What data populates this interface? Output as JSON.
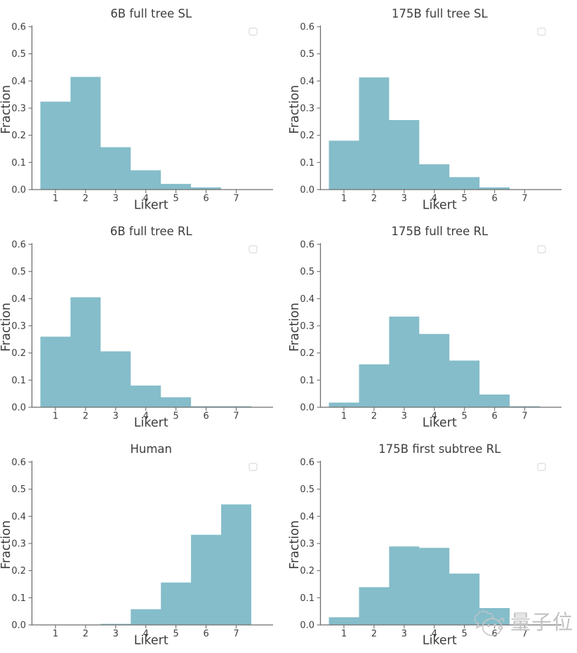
{
  "figure": {
    "background": "#ffffff",
    "rows": 3,
    "cols": 2
  },
  "style": {
    "bar_color": "#85bdca",
    "axis_color": "#6e6e6e",
    "text_color": "#3d3d3d",
    "legend_border_color": "#dcdcdc",
    "watermark_color": "#c2c2c2"
  },
  "watermark": {
    "text": "量子位",
    "logo": "qbitai-logo"
  },
  "chart_data": [
    {
      "type": "bar",
      "title": "6B full tree SL",
      "xlabel": "Likert",
      "ylabel": "Fraction",
      "categories": [
        1,
        2,
        3,
        4,
        5,
        6,
        7
      ],
      "values": [
        0.324,
        0.415,
        0.156,
        0.071,
        0.021,
        0.008,
        0.0
      ],
      "bar_width": 1.0,
      "xticks": [
        "1",
        "2",
        "3",
        "4",
        "5",
        "6",
        "7"
      ],
      "ytick_labels": [
        "0.0",
        "0.1",
        "0.2",
        "0.3",
        "0.4",
        "0.5",
        "0.6"
      ],
      "yticks": [
        0.0,
        0.1,
        0.2,
        0.3,
        0.4,
        0.5,
        0.6
      ],
      "ylim": [
        0,
        0.6
      ],
      "xlim": [
        0.22,
        8.13
      ],
      "grid": false,
      "legend": "empty-box-top-right"
    },
    {
      "type": "bar",
      "title": "175B full tree SL",
      "xlabel": "Likert",
      "ylabel": "Fraction",
      "categories": [
        1,
        2,
        3,
        4,
        5,
        6,
        7
      ],
      "values": [
        0.18,
        0.413,
        0.256,
        0.093,
        0.046,
        0.008,
        0.0
      ],
      "bar_width": 1.0,
      "xticks": [
        "1",
        "2",
        "3",
        "4",
        "5",
        "6",
        "7"
      ],
      "ytick_labels": [
        "0.0",
        "0.1",
        "0.2",
        "0.3",
        "0.4",
        "0.5",
        "0.6"
      ],
      "yticks": [
        0.0,
        0.1,
        0.2,
        0.3,
        0.4,
        0.5,
        0.6
      ],
      "ylim": [
        0,
        0.6
      ],
      "xlim": [
        0.22,
        8.13
      ],
      "grid": false,
      "legend": "empty-box-top-right"
    },
    {
      "type": "bar",
      "title": "6B full tree RL",
      "xlabel": "Likert",
      "ylabel": "Fraction",
      "categories": [
        1,
        2,
        3,
        4,
        5,
        6,
        7
      ],
      "values": [
        0.26,
        0.405,
        0.206,
        0.08,
        0.037,
        0.004,
        0.004
      ],
      "bar_width": 1.0,
      "xticks": [
        "1",
        "2",
        "3",
        "4",
        "5",
        "6",
        "7"
      ],
      "ytick_labels": [
        "0.0",
        "0.1",
        "0.2",
        "0.3",
        "0.4",
        "0.5",
        "0.6"
      ],
      "yticks": [
        0.0,
        0.1,
        0.2,
        0.3,
        0.4,
        0.5,
        0.6
      ],
      "ylim": [
        0,
        0.6
      ],
      "xlim": [
        0.22,
        8.13
      ],
      "grid": false,
      "legend": "empty-box-top-right"
    },
    {
      "type": "bar",
      "title": "175B full tree RL",
      "xlabel": "Likert",
      "ylabel": "Fraction",
      "categories": [
        1,
        2,
        3,
        4,
        5,
        6,
        7
      ],
      "values": [
        0.017,
        0.158,
        0.334,
        0.27,
        0.172,
        0.047,
        0.004
      ],
      "bar_width": 1.0,
      "xticks": [
        "1",
        "2",
        "3",
        "4",
        "5",
        "6",
        "7"
      ],
      "ytick_labels": [
        "0.0",
        "0.1",
        "0.2",
        "0.3",
        "0.4",
        "0.5",
        "0.6"
      ],
      "yticks": [
        0.0,
        0.1,
        0.2,
        0.3,
        0.4,
        0.5,
        0.6
      ],
      "ylim": [
        0,
        0.6
      ],
      "xlim": [
        0.22,
        8.13
      ],
      "grid": false,
      "legend": "empty-box-top-right"
    },
    {
      "type": "bar",
      "title": "Human",
      "xlabel": "Likert",
      "ylabel": "Fraction",
      "categories": [
        1,
        2,
        3,
        4,
        5,
        6,
        7
      ],
      "values": [
        0.0,
        0.0,
        0.004,
        0.058,
        0.156,
        0.332,
        0.444
      ],
      "bar_width": 1.0,
      "xticks": [
        "1",
        "2",
        "3",
        "4",
        "5",
        "6",
        "7"
      ],
      "ytick_labels": [
        "0.0",
        "0.1",
        "0.2",
        "0.3",
        "0.4",
        "0.5",
        "0.6"
      ],
      "yticks": [
        0.0,
        0.1,
        0.2,
        0.3,
        0.4,
        0.5,
        0.6
      ],
      "ylim": [
        0,
        0.6
      ],
      "xlim": [
        0.22,
        8.13
      ],
      "grid": false,
      "legend": "empty-box-top-right"
    },
    {
      "type": "bar",
      "title": "175B first subtree RL",
      "xlabel": "Likert",
      "ylabel": "Fraction",
      "categories": [
        1,
        2,
        3,
        4,
        5,
        6,
        7
      ],
      "values": [
        0.028,
        0.139,
        0.289,
        0.284,
        0.189,
        0.062,
        0.0
      ],
      "bar_width": 1.0,
      "xticks": [
        "1",
        "2",
        "3",
        "4",
        "5",
        "6",
        "7"
      ],
      "ytick_labels": [
        "0.0",
        "0.1",
        "0.2",
        "0.3",
        "0.4",
        "0.5",
        "0.6"
      ],
      "yticks": [
        0.0,
        0.1,
        0.2,
        0.3,
        0.4,
        0.5,
        0.6
      ],
      "ylim": [
        0,
        0.6
      ],
      "xlim": [
        0.22,
        8.13
      ],
      "grid": false,
      "legend": "empty-box-top-right"
    }
  ]
}
